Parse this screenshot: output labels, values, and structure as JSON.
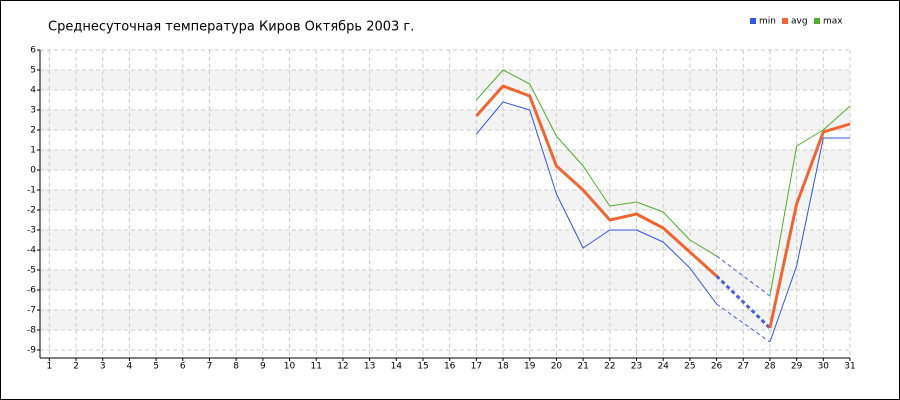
{
  "chart_data": {
    "type": "line",
    "title": "Среднесуточная температура Киров  Октябрь 2003 г.",
    "x": [
      1,
      2,
      3,
      4,
      5,
      6,
      7,
      8,
      9,
      10,
      11,
      12,
      13,
      14,
      15,
      16,
      17,
      18,
      19,
      20,
      21,
      22,
      23,
      24,
      25,
      26,
      27,
      28,
      29,
      30,
      31
    ],
    "series": [
      {
        "name": "min",
        "color": "#3355dd",
        "width": 1,
        "values": [
          null,
          null,
          null,
          null,
          null,
          null,
          null,
          null,
          null,
          null,
          null,
          null,
          null,
          null,
          null,
          null,
          1.8,
          3.4,
          3.0,
          -1.2,
          -3.9,
          -3.0,
          -3.0,
          -3.6,
          -4.9,
          -6.7,
          null,
          -8.6,
          -4.8,
          1.6,
          1.6
        ]
      },
      {
        "name": "avg",
        "color": "#ee6633",
        "width": 3,
        "values": [
          null,
          null,
          null,
          null,
          null,
          null,
          null,
          null,
          null,
          null,
          null,
          null,
          null,
          null,
          null,
          null,
          2.7,
          4.2,
          3.7,
          0.2,
          -1.0,
          -2.5,
          -2.2,
          -2.9,
          -4.1,
          -5.3,
          null,
          -7.9,
          -1.7,
          1.9,
          2.3
        ]
      },
      {
        "name": "max",
        "color": "#55aa33",
        "width": 1,
        "values": [
          null,
          null,
          null,
          null,
          null,
          null,
          null,
          null,
          null,
          null,
          null,
          null,
          null,
          null,
          null,
          null,
          3.5,
          5.0,
          4.3,
          1.7,
          0.2,
          -1.8,
          -1.6,
          -2.1,
          -3.5,
          -4.3,
          null,
          -6.3,
          1.2,
          2.0,
          3.2
        ]
      }
    ],
    "gap_line_color": "#4a5fd6",
    "xlim": [
      0.65,
      31
    ],
    "ylim": [
      -9.4,
      6
    ],
    "xticks": [
      1,
      2,
      3,
      4,
      5,
      6,
      7,
      8,
      9,
      10,
      11,
      12,
      13,
      14,
      15,
      16,
      17,
      18,
      19,
      20,
      21,
      22,
      23,
      24,
      25,
      26,
      27,
      28,
      29,
      30,
      31
    ],
    "yticks": [
      -9,
      -8,
      -7,
      -6,
      -5,
      -4,
      -3,
      -2,
      -1,
      0,
      1,
      2,
      3,
      4,
      5,
      6
    ],
    "grid": true,
    "legend": "top-right"
  }
}
